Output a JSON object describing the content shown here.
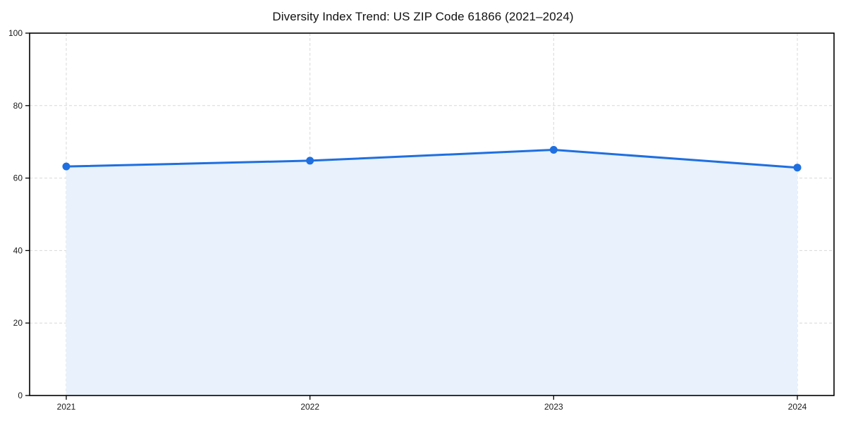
{
  "title": "Diversity Index Trend: US ZIP Code 61866 (2021–2024)",
  "colors": {
    "line": "#1f6fe0",
    "fill": "#e8f1fc",
    "grid": "#d8d8d8",
    "frame": "#000000",
    "text": "#1a1a1a",
    "background": "#ffffff"
  },
  "chart_data": {
    "type": "area",
    "title": "Diversity Index Trend: US ZIP Code 61866 (2021–2024)",
    "categories": [
      "2021",
      "2022",
      "2023",
      "2024"
    ],
    "values": [
      63.2,
      64.8,
      67.8,
      62.9
    ],
    "xlabel": "",
    "ylabel": "",
    "ylim": [
      0,
      100
    ],
    "yticks": [
      0,
      20,
      40,
      60,
      80,
      100
    ],
    "grid": "dashed both",
    "legend_position": "none",
    "marker": "circle",
    "line_color": "#1f6fe0",
    "fill_alpha": 0.1
  }
}
